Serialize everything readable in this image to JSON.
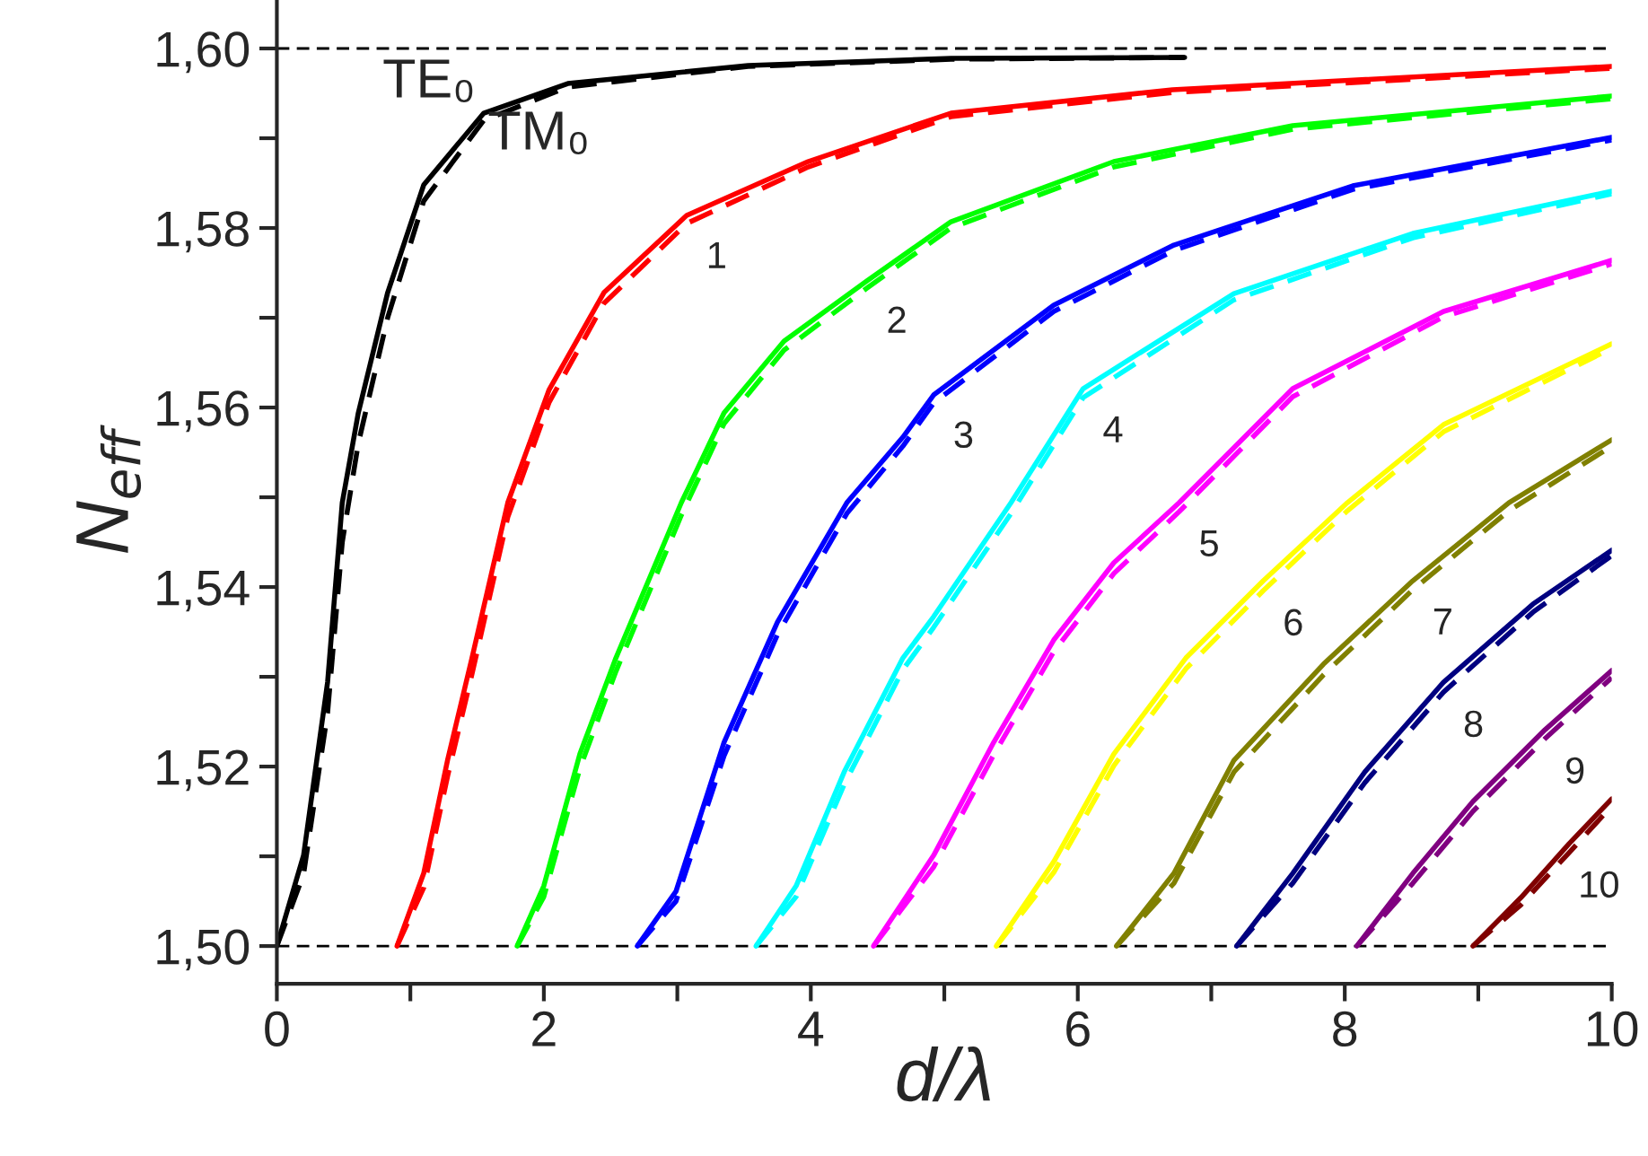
{
  "chart_data": {
    "type": "line",
    "xlabel": "d/λ",
    "ylabel": "N$_{eff}$",
    "xlim": [
      0,
      10
    ],
    "ylim": [
      1.4958,
      1.6054
    ],
    "xticks": [
      0,
      {
        "value": 1,
        "label": null
      },
      2,
      {
        "value": 3,
        "label": null
      },
      4,
      {
        "value": 5,
        "label": null
      },
      6,
      {
        "value": 7,
        "label": null
      },
      8,
      {
        "value": 9,
        "label": null
      },
      10
    ],
    "yticks": [
      {
        "value": 1.5,
        "label": "1,50"
      },
      {
        "value": 1.51,
        "label": null
      },
      {
        "value": 1.52,
        "label": "1,52"
      },
      {
        "value": 1.53,
        "label": null
      },
      {
        "value": 1.54,
        "label": "1,54"
      },
      {
        "value": 1.55,
        "label": null
      },
      {
        "value": 1.56,
        "label": "1,56"
      },
      {
        "value": 1.57,
        "label": null
      },
      {
        "value": 1.58,
        "label": "1,58"
      },
      {
        "value": 1.59,
        "label": null
      },
      {
        "value": 1.6,
        "label": "1,60"
      }
    ],
    "grid": false,
    "legend": false,
    "marker": "none",
    "ref_lines": [
      {
        "axis": "y",
        "value": 1.5,
        "color": "#000000",
        "line_style": "dashed"
      },
      {
        "axis": "y",
        "value": 1.6,
        "color": "#000000",
        "line_style": "dashed"
      }
    ],
    "series": [
      {
        "name": "TE₀",
        "color": "#000000",
        "line_style": "solid",
        "x": [
          0,
          0.2,
          0.38,
          0.49,
          0.61,
          0.83,
          1.1,
          1.55,
          2.18,
          3.53,
          5.05,
          6.8
        ],
        "values": [
          1.5,
          1.5101,
          1.5294,
          1.5494,
          1.5594,
          1.5728,
          1.5848,
          1.5928,
          1.5961,
          1.5981,
          1.5989,
          1.599
        ]
      },
      {
        "name": "TM₀",
        "color": "#000000",
        "line_style": "dashed",
        "x": [
          0,
          0.2,
          0.38,
          0.49,
          0.61,
          0.83,
          1.1,
          1.55,
          2.18,
          3.53,
          5.05,
          6.8
        ],
        "values": [
          1.5,
          1.508,
          1.526,
          1.545,
          1.556,
          1.57,
          1.583,
          1.592,
          1.5957,
          1.598,
          1.5988,
          1.599
        ]
      },
      {
        "color": "#ff0000",
        "line_style": "solid",
        "x": [
          0.9,
          1.1,
          1.28,
          1.46,
          1.73,
          2.04,
          2.45,
          3.07,
          3.98,
          5.05,
          6.71,
          10
        ],
        "values": [
          1.5,
          1.5081,
          1.5208,
          1.532,
          1.5494,
          1.562,
          1.5728,
          1.5814,
          1.5874,
          1.5928,
          1.5954,
          1.598
        ]
      },
      {
        "name": "1",
        "color": "#ff0000",
        "line_style": "dashed",
        "x": [
          0.9,
          1.1,
          1.28,
          1.46,
          1.73,
          2.04,
          2.45,
          3.07,
          3.98,
          5.05,
          6.71,
          10
        ],
        "values": [
          1.5,
          1.5065,
          1.519,
          1.5302,
          1.5478,
          1.5606,
          1.5716,
          1.5805,
          1.5868,
          1.5924,
          1.5951,
          1.5978
        ]
      },
      {
        "color": "#00ff00",
        "line_style": "solid",
        "x": [
          1.8,
          2.0,
          2.27,
          2.54,
          3.03,
          3.35,
          3.8,
          4.42,
          5.05,
          6.27,
          7.61,
          10
        ],
        "values": [
          1.5,
          1.5067,
          1.5214,
          1.5321,
          1.5494,
          1.5594,
          1.5674,
          1.5741,
          1.5807,
          1.5874,
          1.5914,
          1.5947
        ]
      },
      {
        "name": "2",
        "color": "#00ff00",
        "line_style": "dashed",
        "x": [
          1.8,
          2.0,
          2.27,
          2.54,
          3.03,
          3.35,
          3.8,
          4.42,
          5.05,
          6.27,
          7.61,
          10
        ],
        "values": [
          1.5,
          1.5055,
          1.5198,
          1.5306,
          1.548,
          1.5582,
          1.5664,
          1.5733,
          1.58,
          1.5868,
          1.591,
          1.5944
        ]
      },
      {
        "color": "#0000ff",
        "line_style": "solid",
        "x": [
          2.7,
          2.99,
          3.35,
          3.75,
          4.27,
          4.69,
          4.92,
          5.82,
          6.72,
          8.06,
          10
        ],
        "values": [
          1.5,
          1.5061,
          1.5227,
          1.5361,
          1.5494,
          1.5567,
          1.5614,
          1.5714,
          1.5781,
          1.5847,
          1.5901
        ]
      },
      {
        "name": "3",
        "color": "#0000ff",
        "line_style": "dashed",
        "x": [
          2.7,
          2.99,
          3.35,
          3.75,
          4.27,
          4.69,
          4.92,
          5.82,
          6.72,
          8.06,
          10
        ],
        "values": [
          1.5,
          1.505,
          1.5212,
          1.5347,
          1.5482,
          1.5557,
          1.5605,
          1.5707,
          1.5775,
          1.5843,
          1.5898
        ]
      },
      {
        "color": "#00ffff",
        "line_style": "solid",
        "x": [
          3.59,
          3.89,
          4.25,
          4.69,
          4.92,
          5.5,
          6.04,
          7.17,
          8.51,
          10
        ],
        "values": [
          1.5,
          1.5067,
          1.5194,
          1.5321,
          1.5367,
          1.5494,
          1.5621,
          1.5727,
          1.5794,
          1.5841
        ]
      },
      {
        "name": "4",
        "color": "#00ffff",
        "line_style": "dashed",
        "x": [
          3.59,
          3.89,
          4.25,
          4.69,
          4.92,
          5.5,
          6.04,
          7.17,
          8.51,
          10
        ],
        "values": [
          1.5,
          1.5055,
          1.518,
          1.5308,
          1.5355,
          1.5482,
          1.5611,
          1.572,
          1.5789,
          1.5838
        ]
      },
      {
        "color": "#ff00ff",
        "line_style": "solid",
        "x": [
          4.47,
          4.92,
          5.37,
          5.82,
          6.27,
          6.76,
          7.61,
          8.74,
          10
        ],
        "values": [
          1.5,
          1.5101,
          1.5227,
          1.5341,
          1.5427,
          1.5494,
          1.5621,
          1.5707,
          1.5764
        ]
      },
      {
        "name": "5",
        "color": "#ff00ff",
        "line_style": "dashed",
        "x": [
          4.47,
          4.92,
          5.37,
          5.82,
          6.27,
          6.76,
          7.61,
          8.74,
          10
        ],
        "values": [
          1.5,
          1.5088,
          1.5213,
          1.5328,
          1.5415,
          1.5484,
          1.5612,
          1.5701,
          1.576
        ]
      },
      {
        "color": "#ffff00",
        "line_style": "solid",
        "x": [
          5.39,
          5.82,
          6.27,
          6.81,
          7.39,
          8.02,
          8.74,
          10
        ],
        "values": [
          1.5,
          1.5094,
          1.5214,
          1.5321,
          1.5407,
          1.5494,
          1.5581,
          1.5671
        ]
      },
      {
        "name": "6",
        "color": "#ffff00",
        "line_style": "dashed",
        "x": [
          5.39,
          5.82,
          6.27,
          6.81,
          7.39,
          8.02,
          8.74,
          10
        ],
        "values": [
          1.5,
          1.5082,
          1.5201,
          1.5309,
          1.5396,
          1.5485,
          1.5573,
          1.5666
        ]
      },
      {
        "color": "#808000",
        "line_style": "solid",
        "x": [
          6.29,
          6.72,
          7.17,
          7.84,
          8.51,
          9.23,
          10
        ],
        "values": [
          1.5,
          1.5081,
          1.5207,
          1.5314,
          1.5407,
          1.5494,
          1.5564
        ]
      },
      {
        "name": "7",
        "color": "#808000",
        "line_style": "dashed",
        "x": [
          6.29,
          6.72,
          7.17,
          7.84,
          8.51,
          9.23,
          10
        ],
        "values": [
          1.5,
          1.507,
          1.5194,
          1.5302,
          1.5397,
          1.5485,
          1.5557
        ]
      },
      {
        "color": "#000080",
        "line_style": "solid",
        "x": [
          7.19,
          7.61,
          8.15,
          8.74,
          9.41,
          10
        ],
        "values": [
          1.5,
          1.5081,
          1.5194,
          1.5294,
          1.5381,
          1.5441
        ]
      },
      {
        "name": "8",
        "color": "#000080",
        "line_style": "dashed",
        "x": [
          7.19,
          7.61,
          8.15,
          8.74,
          9.41,
          10
        ],
        "values": [
          1.5,
          1.507,
          1.5182,
          1.5283,
          1.5372,
          1.5435
        ]
      },
      {
        "color": "#800080",
        "line_style": "solid",
        "x": [
          8.09,
          8.51,
          8.96,
          9.5,
          10
        ],
        "values": [
          1.5,
          1.5081,
          1.5161,
          1.5241,
          1.5307
        ]
      },
      {
        "name": "9",
        "color": "#800080",
        "line_style": "dashed",
        "x": [
          8.09,
          8.51,
          8.96,
          9.5,
          10
        ],
        "values": [
          1.5,
          1.507,
          1.515,
          1.5231,
          1.5299
        ]
      },
      {
        "color": "#800000",
        "line_style": "solid",
        "x": [
          8.96,
          9.32,
          9.68,
          10
        ],
        "values": [
          1.5,
          1.5054,
          1.5114,
          1.5164
        ]
      },
      {
        "name": "10",
        "color": "#800000",
        "line_style": "dashed",
        "x": [
          8.96,
          9.32,
          9.68,
          10
        ],
        "values": [
          1.5,
          1.5046,
          1.5104,
          1.5156
        ]
      }
    ]
  }
}
